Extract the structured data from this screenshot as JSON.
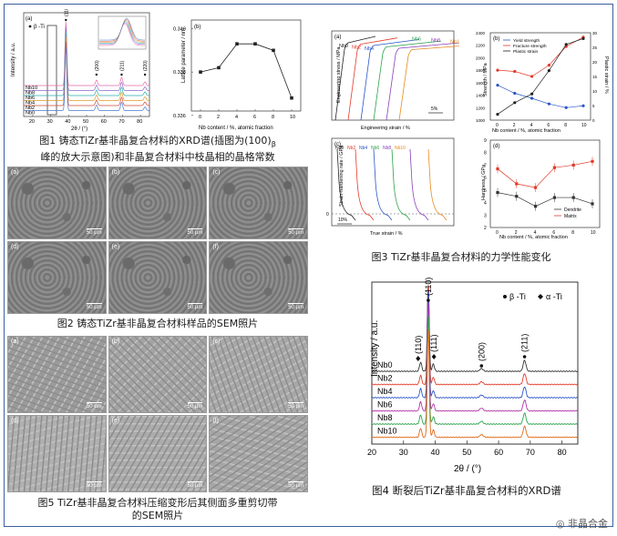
{
  "captions": {
    "fig1": "图1 铸态TiZr基非晶复合材料的XRD谱(插图为(100)β峰的放大示意图)和非晶复合材料中枝晶相的晶格常数",
    "fig1_line1": "图1 铸态TiZr基非晶复合材料的XRD谱(插图为(100)",
    "fig1_sub": "β",
    "fig1_line2": "峰的放大示意图)和非晶复合材料中枝晶相的晶格常数",
    "fig2": "图2 铸态TiZr基非晶复合材料样品的SEM照片",
    "fig3": "图3 TiZr基非晶复合材料的力学性能变化",
    "fig4": "图4 断裂后TiZr基非晶复合材料的XRD谱",
    "fig5_line1": "图5 TiZr基非晶复合材料压缩变形后其侧面多重剪切带",
    "fig5_line2": "的SEM照片"
  },
  "watermark": "非晶合金",
  "fig1a": {
    "panel_label": "(a)",
    "legend": "β -Ti",
    "peak_labels": [
      "(110)",
      "(200)",
      "(211)",
      "(220)"
    ],
    "samples": [
      "Nb10",
      "Nb8",
      "Nb6",
      "Nb4",
      "Nb2",
      "Nb0"
    ],
    "xlabel": "2θ / (°)",
    "ylabel": "Intensity / a.u.",
    "xticks": [
      "20",
      "30",
      "40",
      "50",
      "60",
      "70",
      "80"
    ]
  },
  "chart_data": [
    {
      "type": "line",
      "title": "",
      "panel_label": "(b)",
      "xlabel": "Nb content / %, atomic fraction",
      "ylabel": "Lattice parameter / nm",
      "x": [
        0,
        2,
        4,
        6,
        8,
        10
      ],
      "y": [
        0.338,
        0.3382,
        0.3393,
        0.3393,
        0.339,
        0.3368
      ],
      "xlim": [
        -1,
        11
      ],
      "ylim": [
        0.3362,
        0.3404
      ],
      "yticks": [
        "0.336",
        "0.338",
        "0.340"
      ],
      "xticks": [
        "0",
        "2",
        "4",
        "6",
        "8",
        "10"
      ]
    },
    {
      "type": "line",
      "panel_label": "(a)",
      "xlabel": "Engineering strain / %",
      "ylabel": "Engineering stress / MPa",
      "series": [
        {
          "name": "Nb0",
          "color": "#222222"
        },
        {
          "name": "Nb2",
          "color": "#e23a2a"
        },
        {
          "name": "Nb4",
          "color": "#2a55c8"
        },
        {
          "name": "Nb6",
          "color": "#2aa24a"
        },
        {
          "name": "Nb8",
          "color": "#8a3fb8"
        },
        {
          "name": "Nb10",
          "color": "#e88a1a"
        }
      ],
      "scale_bar": "5%"
    },
    {
      "type": "line",
      "panel_label": "(b)",
      "xlabel": "Nb content / %, atomic fraction",
      "ylabel": "Strength / MPa",
      "y2label": "Plastic strain / %",
      "x": [
        0,
        2,
        4,
        6,
        8,
        10
      ],
      "series": [
        {
          "name": "Yield strength",
          "color": "#2a55c8",
          "values": [
            1560,
            1430,
            1350,
            1260,
            1200,
            1230
          ]
        },
        {
          "name": "Fracture strength",
          "color": "#e23a2a",
          "values": [
            1800,
            1780,
            1700,
            1880,
            2180,
            2330
          ]
        },
        {
          "name": "Plastic strain",
          "color": "#222222",
          "axis": "right",
          "values": [
            2,
            6,
            9,
            17,
            26,
            28
          ]
        }
      ],
      "ylim": [
        1000,
        2400
      ],
      "y2lim": [
        0,
        30
      ],
      "yticks": [
        "1000",
        "1200",
        "1400",
        "1600",
        "1800",
        "2000",
        "2200",
        "2400"
      ],
      "y2ticks": [
        "0",
        "5",
        "10",
        "15",
        "20",
        "25",
        "30"
      ],
      "xticks": [
        "0",
        "2",
        "4",
        "6",
        "8",
        "10"
      ]
    },
    {
      "type": "line",
      "panel_label": "(c)",
      "xlabel": "True strain / %",
      "ylabel": "Strain-hardening rate / GPa",
      "series": [
        {
          "name": "Nb0",
          "color": "#222222"
        },
        {
          "name": "Nb2",
          "color": "#e23a2a"
        },
        {
          "name": "Nb4",
          "color": "#2a55c8"
        },
        {
          "name": "Nb6",
          "color": "#2aa24a"
        },
        {
          "name": "Nb8",
          "color": "#8a3fb8"
        },
        {
          "name": "Nb10",
          "color": "#e88a1a"
        }
      ],
      "zero_label": "0",
      "scale_bar": "10%"
    },
    {
      "type": "line",
      "panel_label": "(d)",
      "xlabel": "Nb content / %, atomic fraction",
      "ylabel": "Hardness / GPa",
      "x": [
        0,
        2,
        4,
        6,
        8,
        10
      ],
      "series": [
        {
          "name": "Dendrite",
          "color": "#333333",
          "values": [
            4.8,
            4.5,
            3.7,
            4.4,
            4.4,
            3.9
          ]
        },
        {
          "name": "Matrix",
          "color": "#e23a2a",
          "values": [
            6.7,
            5.5,
            5.2,
            6.8,
            7.0,
            7.3
          ]
        }
      ],
      "ylim": [
        2,
        9
      ],
      "yticks": [
        "2",
        "3",
        "4",
        "5",
        "6",
        "7",
        "8",
        "9"
      ],
      "xticks": [
        "0",
        "2",
        "4",
        "6",
        "8",
        "10"
      ]
    },
    {
      "type": "line",
      "title": "",
      "xlabel": "2θ / (°)",
      "ylabel": "Intensity / a.u.",
      "legend": [
        "β -Ti",
        "α -Ti"
      ],
      "samples": [
        "Nb0",
        "Nb2",
        "Nb4",
        "Nb6",
        "Nb8",
        "Nb10"
      ],
      "colors": [
        "#333333",
        "#e23a2a",
        "#2a55c8",
        "#b032a8",
        "#2aa24a",
        "#e06a1a"
      ],
      "peak_labels": [
        "(110)",
        "(110)",
        "(111)",
        "(200)",
        "(211)"
      ],
      "xlim": [
        20,
        85
      ],
      "xticks": [
        "20",
        "30",
        "40",
        "50",
        "60",
        "70",
        "80"
      ]
    }
  ],
  "fig2": {
    "tiles": [
      {
        "label": "(a)",
        "scale": "50 μm"
      },
      {
        "label": "(b)",
        "scale": "50 μm"
      },
      {
        "label": "(c)",
        "scale": "50 μm"
      },
      {
        "label": "(d)",
        "scale": "50 μm"
      },
      {
        "label": "(e)",
        "scale": "50 μm"
      },
      {
        "label": "(f)",
        "scale": "50 μm"
      }
    ]
  },
  "fig5": {
    "tiles": [
      {
        "label": "(a)",
        "scale": "50 μm"
      },
      {
        "label": "(b)",
        "scale": "50 μm"
      },
      {
        "label": "(c)",
        "scale": "50 μm"
      },
      {
        "label": "(d)",
        "scale": "50 μm"
      },
      {
        "label": "(e)",
        "scale": "50 μm"
      },
      {
        "label": "(f)",
        "scale": "50 μm"
      }
    ]
  }
}
